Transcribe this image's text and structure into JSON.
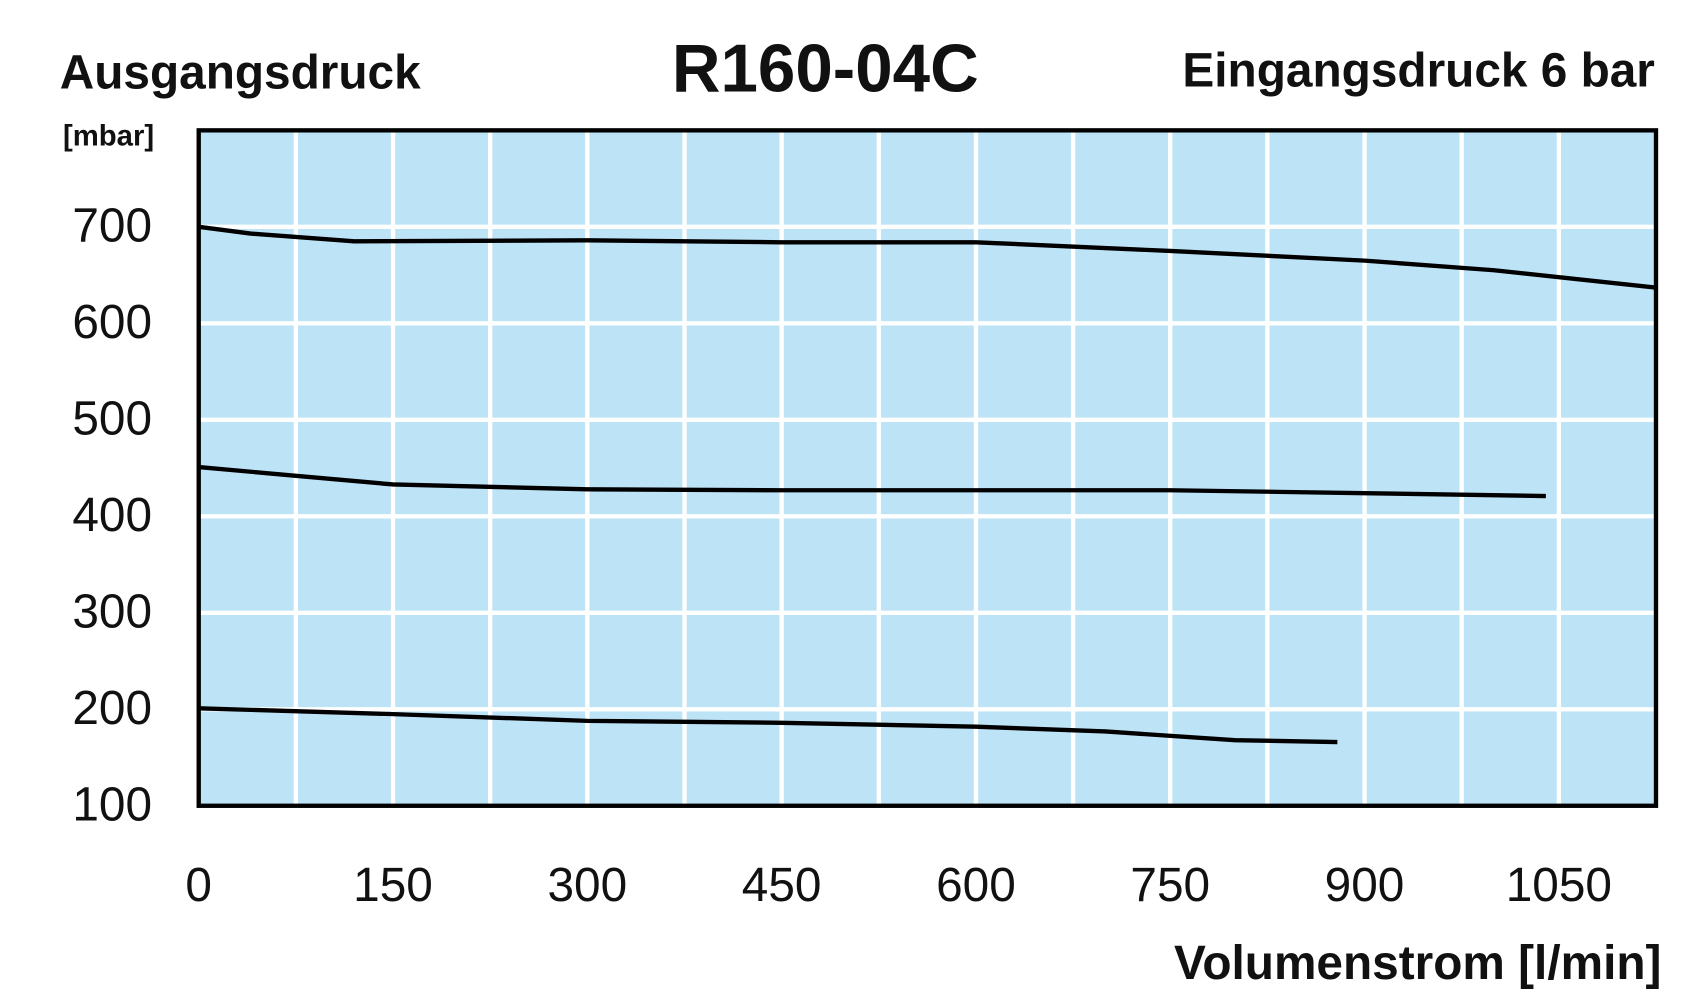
{
  "chart_data": {
    "type": "line",
    "title": "R160-04C",
    "subtitle": "Eingangsdruck 6 bar",
    "y_label": "Ausgangsdruck",
    "y_unit": "[mbar]",
    "x_label": "Volumenstrom [l/min]",
    "xlim": [
      0,
      1125
    ],
    "ylim": [
      100,
      800
    ],
    "xticks": [
      0,
      150,
      300,
      450,
      600,
      750,
      900,
      1050
    ],
    "yticks": [
      100,
      200,
      300,
      400,
      500,
      600,
      700
    ],
    "xgridlines": [
      75,
      150,
      225,
      300,
      375,
      450,
      525,
      600,
      675,
      750,
      825,
      900,
      975,
      1050
    ],
    "ygridlines": [
      200,
      300,
      400,
      500,
      600,
      700
    ],
    "grid": true,
    "background": "#bde3f7",
    "series": [
      {
        "color": "#000000",
        "x": [
          0,
          40,
          120,
          300,
          450,
          600,
          750,
          900,
          1000,
          1125
        ],
        "values": [
          700,
          693,
          685,
          686,
          684,
          684,
          675,
          665,
          655,
          637
        ]
      },
      {
        "color": "#000000",
        "x": [
          0,
          75,
          150,
          300,
          450,
          600,
          750,
          900,
          1040
        ],
        "values": [
          451,
          442,
          433,
          428,
          427,
          427,
          427,
          424,
          421
        ]
      },
      {
        "color": "#000000",
        "x": [
          0,
          150,
          300,
          450,
          600,
          700,
          800,
          879
        ],
        "values": [
          201,
          195,
          188,
          186,
          182,
          177,
          168,
          166
        ]
      }
    ]
  }
}
